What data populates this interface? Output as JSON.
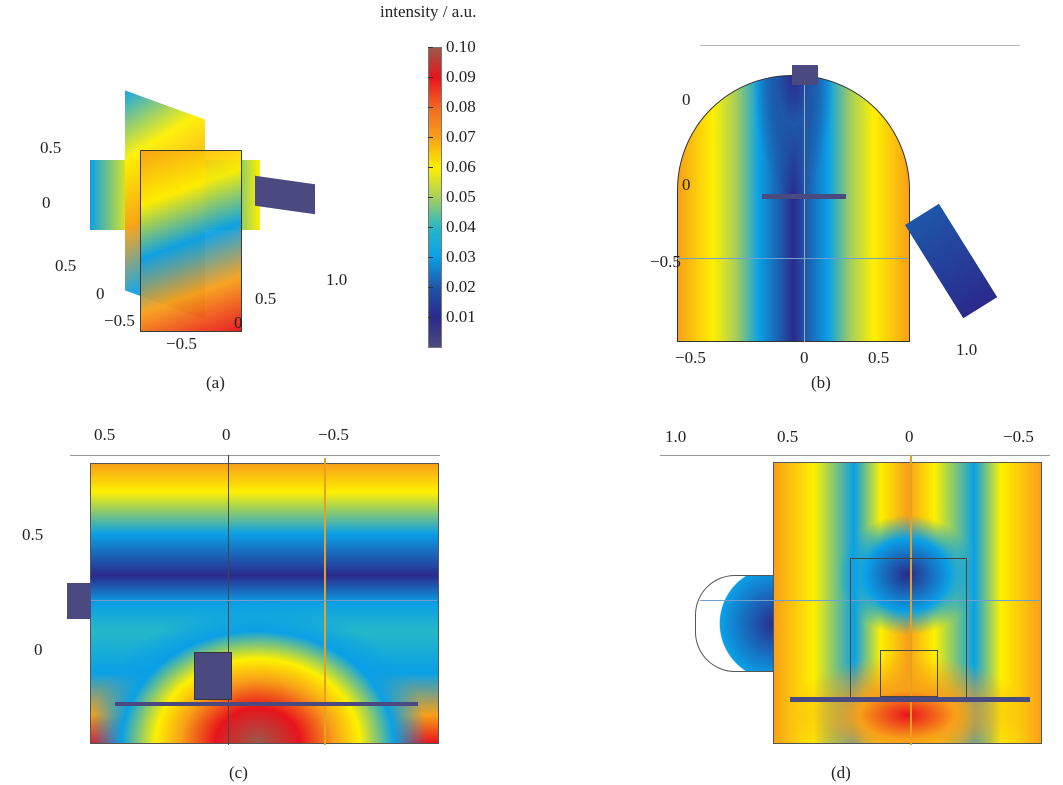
{
  "colorbar": {
    "title": "intensity / a.u.",
    "ticks": [
      "0.10",
      "0.09",
      "0.08",
      "0.07",
      "0.06",
      "0.05",
      "0.04",
      "0.03",
      "0.02",
      "0.01"
    ],
    "colors": [
      "#4b4a80",
      "#2a2a8c",
      "#1e56a8",
      "#0aa0e6",
      "#25b8c8",
      "#a8cf5a",
      "#fff000",
      "#f8a018",
      "#f26a24",
      "#e8141c",
      "#9a5a4a"
    ]
  },
  "panels": {
    "a": {
      "caption": "(a)",
      "labels": [
        "0.5",
        "0",
        "0.5",
        "0",
        "−0.5",
        "−0.5",
        "0",
        "0.5",
        "1.0"
      ]
    },
    "b": {
      "caption": "(b)",
      "labels": [
        "0",
        "0",
        "−0.5",
        "−0.5",
        "0",
        "0.5",
        "1.0"
      ]
    },
    "c": {
      "caption": "(c)",
      "labels": [
        "0.5",
        "0",
        "−0.5",
        "0.5",
        "0"
      ]
    },
    "d": {
      "caption": "(d)",
      "labels": [
        "1.0",
        "0.5",
        "0",
        "−0.5"
      ]
    }
  }
}
